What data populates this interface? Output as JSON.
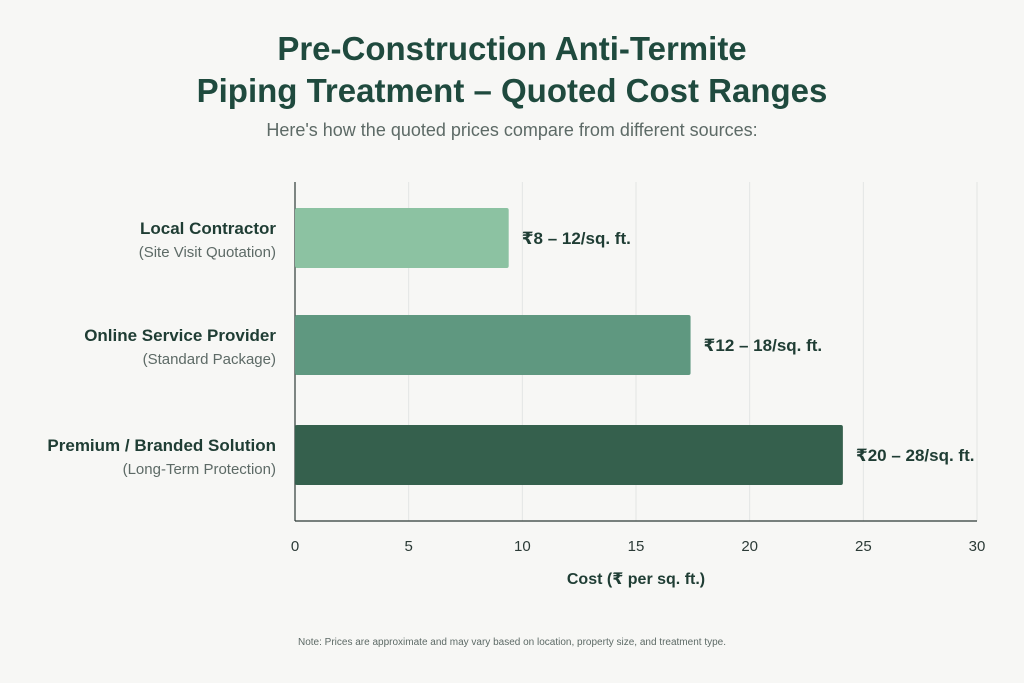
{
  "chart_data": {
    "type": "bar",
    "orientation": "horizontal",
    "title_lines": [
      "Pre-Construction Anti-Termite",
      "Piping Treatment – Quoted Cost Ranges"
    ],
    "subtitle": "Here's how the quoted prices compare from different sources:",
    "xlabel": "Cost (₹ per sq. ft.)",
    "ylabel": "",
    "xlim": [
      0,
      30
    ],
    "xticks": [
      0,
      5,
      10,
      15,
      20,
      25,
      30
    ],
    "grid": true,
    "categories": [
      {
        "name": "Local Contractor",
        "sub": "(Site Visit Quotation)"
      },
      {
        "name": "Online Service Provider",
        "sub": "(Standard Package)"
      },
      {
        "name": "Premium / Branded Solution",
        "sub": "(Long-Term Protection)"
      }
    ],
    "values": [
      9.4,
      17.4,
      24.1
    ],
    "value_labels": [
      "₹8 – 12/sq. ft.",
      "₹12 – 18/sq. ft.",
      "₹20 – 28/sq. ft."
    ],
    "colors": [
      "#8cc2a2",
      "#5f9880",
      "#35604d"
    ],
    "note": "Note: Prices are approximate and may vary based on location, property size, and treatment type."
  }
}
